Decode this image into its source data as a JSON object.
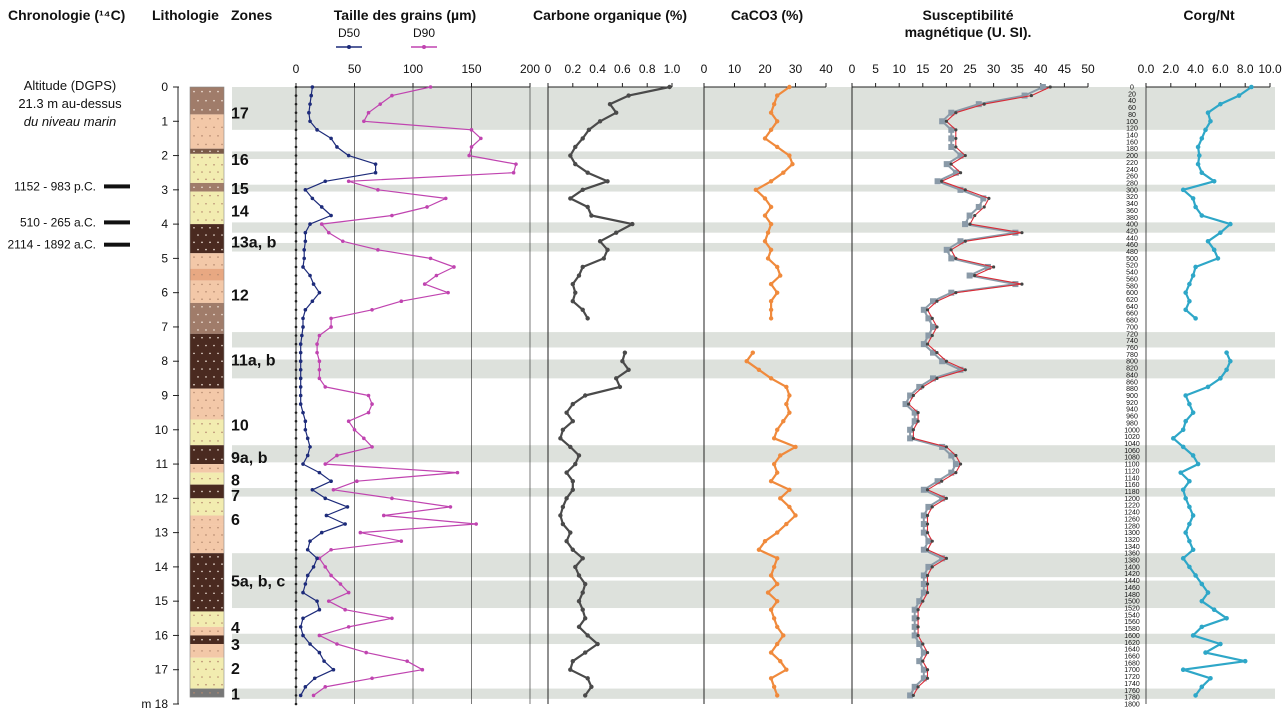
{
  "chart_data": {
    "type": "line",
    "depth_unit_label": "m",
    "depth_range_m": [
      0,
      18
    ],
    "column_titles": {
      "chronology": "Chronologie (¹⁴C)",
      "lithology": "Lithologie",
      "zones": "Zones",
      "grain": "Taille des grains (µm)",
      "corg": "Carbone organique (%)",
      "caco3": "CaCO3 (%)",
      "susc": "Susceptibilité",
      "susc2": "magnétique  (U. SI).",
      "cn": "Corg/Nt"
    },
    "altitude_text": [
      "Altitude (DGPS)",
      "21.3 m au-dessus",
      "du niveau marin"
    ],
    "dates": [
      {
        "label": "1152 - 983 p.C.",
        "depth": 2.9
      },
      {
        "label": "510 - 265 a.C.",
        "depth": 3.95
      },
      {
        "label": "2114 - 1892 a.C.",
        "depth": 4.6
      }
    ],
    "zones": [
      {
        "label": "17",
        "depth": 0.75
      },
      {
        "label": "16",
        "depth": 2.1
      },
      {
        "label": "15",
        "depth": 2.95
      },
      {
        "label": "14",
        "depth": 3.6
      },
      {
        "label": "13a, b",
        "depth": 4.5
      },
      {
        "label": "12",
        "depth": 6.05
      },
      {
        "label": "11a, b",
        "depth": 7.95
      },
      {
        "label": "10",
        "depth": 9.85
      },
      {
        "label": "9a, b",
        "depth": 10.8
      },
      {
        "label": "8",
        "depth": 11.45
      },
      {
        "label": "7",
        "depth": 11.9
      },
      {
        "label": "6",
        "depth": 12.6
      },
      {
        "label": "5a, b, c",
        "depth": 14.4
      },
      {
        "label": "4",
        "depth": 15.75
      },
      {
        "label": "3",
        "depth": 16.25
      },
      {
        "label": "2",
        "depth": 16.95
      },
      {
        "label": "1",
        "depth": 17.7
      }
    ],
    "gray_bands_m": [
      [
        0.0,
        1.25
      ],
      [
        1.88,
        2.1
      ],
      [
        2.85,
        3.05
      ],
      [
        3.95,
        4.25
      ],
      [
        4.55,
        4.8
      ],
      [
        7.15,
        7.6
      ],
      [
        7.95,
        8.5
      ],
      [
        10.45,
        10.95
      ],
      [
        11.7,
        11.95
      ],
      [
        13.6,
        14.3
      ],
      [
        14.4,
        15.2
      ],
      [
        15.95,
        16.25
      ],
      [
        17.55,
        17.85
      ]
    ],
    "lithology_layers": [
      {
        "top": 0.0,
        "bottom": 0.8,
        "color": "#a07c6a"
      },
      {
        "top": 0.8,
        "bottom": 1.8,
        "color": "#f3c8a8"
      },
      {
        "top": 1.8,
        "bottom": 1.95,
        "color": "#7a5a48"
      },
      {
        "top": 1.95,
        "bottom": 2.8,
        "color": "#f2ecb0"
      },
      {
        "top": 2.8,
        "bottom": 3.05,
        "color": "#a07c6a"
      },
      {
        "top": 3.05,
        "bottom": 4.0,
        "color": "#f2ecb0"
      },
      {
        "top": 4.0,
        "bottom": 4.85,
        "color": "#4a2a20"
      },
      {
        "top": 4.85,
        "bottom": 5.3,
        "color": "#f3c8a8"
      },
      {
        "top": 5.3,
        "bottom": 5.65,
        "color": "#e8a882"
      },
      {
        "top": 5.65,
        "bottom": 6.3,
        "color": "#f3c8a8"
      },
      {
        "top": 6.3,
        "bottom": 7.2,
        "color": "#a07c6a"
      },
      {
        "top": 7.2,
        "bottom": 8.8,
        "color": "#4a2a20"
      },
      {
        "top": 8.8,
        "bottom": 9.7,
        "color": "#f3c8a8"
      },
      {
        "top": 9.7,
        "bottom": 10.45,
        "color": "#f2ecb0"
      },
      {
        "top": 10.45,
        "bottom": 11.0,
        "color": "#4a2a20"
      },
      {
        "top": 11.0,
        "bottom": 11.25,
        "color": "#f3c8a8"
      },
      {
        "top": 11.25,
        "bottom": 11.6,
        "color": "#f2ecb0"
      },
      {
        "top": 11.6,
        "bottom": 12.0,
        "color": "#4a2a20"
      },
      {
        "top": 12.0,
        "bottom": 12.5,
        "color": "#f2ecb0"
      },
      {
        "top": 12.5,
        "bottom": 12.75,
        "color": "#f3c8a8"
      },
      {
        "top": 12.75,
        "bottom": 13.6,
        "color": "#f3c8a8"
      },
      {
        "top": 13.6,
        "bottom": 15.3,
        "color": "#4a2a20"
      },
      {
        "top": 15.3,
        "bottom": 15.75,
        "color": "#f2ecb0"
      },
      {
        "top": 15.75,
        "bottom": 16.0,
        "color": "#f3c8a8"
      },
      {
        "top": 16.0,
        "bottom": 16.25,
        "color": "#4a2a20"
      },
      {
        "top": 16.25,
        "bottom": 16.65,
        "color": "#f3c8a8"
      },
      {
        "top": 16.65,
        "bottom": 17.55,
        "color": "#f2ecb0"
      },
      {
        "top": 17.55,
        "bottom": 17.8,
        "color": "#777777"
      }
    ],
    "grain_size": {
      "xlim": [
        0,
        200
      ],
      "x_ticks": [
        "0",
        "50",
        "100",
        "150",
        "200"
      ],
      "legend": [
        "D50",
        "D90"
      ],
      "colors": {
        "D50": "#1d2b7a",
        "D90": "#c044b0"
      },
      "depth": [
        0.0,
        0.25,
        0.5,
        0.75,
        1.0,
        1.25,
        1.5,
        1.75,
        2.0,
        2.25,
        2.5,
        2.75,
        3.0,
        3.25,
        3.5,
        3.75,
        4.0,
        4.25,
        4.5,
        4.75,
        5.0,
        5.25,
        5.5,
        5.75,
        6.0,
        6.25,
        6.5,
        6.75,
        7.0,
        7.25,
        7.5,
        7.75,
        8.0,
        8.25,
        8.5,
        8.75,
        9.0,
        9.25,
        9.5,
        9.75,
        10.0,
        10.25,
        10.5,
        10.75,
        11.0,
        11.25,
        11.5,
        11.75,
        12.0,
        12.25,
        12.5,
        12.75,
        13.0,
        13.25,
        13.5,
        13.75,
        14.0,
        14.25,
        14.5,
        14.75,
        15.0,
        15.25,
        15.5,
        15.75,
        16.0,
        16.25,
        16.5,
        16.75,
        17.0,
        17.25,
        17.5,
        17.75
      ],
      "D50": [
        14,
        13,
        12,
        11,
        12,
        18,
        30,
        35,
        45,
        68,
        68,
        25,
        8,
        14,
        22,
        30,
        12,
        8,
        8,
        7,
        7,
        6,
        12,
        15,
        20,
        14,
        8,
        6,
        6,
        5,
        4,
        4,
        4,
        4,
        4,
        4,
        4,
        4,
        6,
        8,
        8,
        10,
        12,
        10,
        6,
        20,
        30,
        14,
        25,
        44,
        26,
        42,
        22,
        12,
        10,
        18,
        15,
        10,
        8,
        6,
        18,
        20,
        6,
        4,
        6,
        12,
        20,
        24,
        32,
        16,
        8,
        4
      ],
      "D90": [
        115,
        82,
        72,
        62,
        58,
        150,
        158,
        150,
        148,
        188,
        186,
        45,
        70,
        128,
        112,
        82,
        22,
        28,
        40,
        70,
        115,
        135,
        120,
        110,
        130,
        90,
        65,
        30,
        30,
        20,
        18,
        18,
        20,
        20,
        20,
        25,
        62,
        65,
        62,
        45,
        50,
        58,
        65,
        35,
        25,
        138,
        52,
        32,
        82,
        132,
        75,
        154,
        55,
        90,
        30,
        20,
        25,
        30,
        38,
        45,
        28,
        42,
        82,
        45,
        20,
        35,
        60,
        95,
        108,
        65,
        25,
        15
      ]
    },
    "organic_carbon": {
      "xlim": [
        0,
        1.0
      ],
      "x_ticks": [
        "0",
        "0.2",
        "0.4",
        "0.6",
        "0.8",
        "1.0"
      ],
      "color": "#4a4a4a",
      "depth": [
        0.0,
        0.25,
        0.5,
        0.75,
        1.0,
        1.25,
        1.5,
        1.75,
        2.0,
        2.25,
        2.5,
        2.75,
        3.0,
        3.25,
        3.5,
        3.75,
        4.0,
        4.25,
        4.5,
        4.75,
        5.0,
        5.25,
        5.5,
        5.75,
        6.0,
        6.25,
        6.5,
        6.75,
        7.75,
        8.0,
        8.25,
        8.5,
        8.75,
        9.0,
        9.25,
        9.5,
        9.75,
        10.0,
        10.25,
        10.5,
        10.75,
        11.0,
        11.25,
        11.5,
        11.75,
        12.0,
        12.25,
        12.5,
        12.75,
        13.0,
        13.25,
        13.5,
        13.75,
        14.0,
        14.25,
        14.5,
        14.75,
        15.0,
        15.25,
        15.5,
        15.75,
        16.0,
        16.25,
        16.5,
        16.75,
        17.0,
        17.25,
        17.5,
        17.75
      ],
      "values": [
        0.98,
        0.65,
        0.5,
        0.55,
        0.42,
        0.33,
        0.28,
        0.22,
        0.18,
        0.22,
        0.32,
        0.48,
        0.28,
        0.18,
        0.32,
        0.35,
        0.68,
        0.55,
        0.42,
        0.48,
        0.45,
        0.28,
        0.25,
        0.2,
        0.22,
        0.2,
        0.28,
        0.32,
        0.62,
        0.6,
        0.65,
        0.55,
        0.58,
        0.3,
        0.2,
        0.15,
        0.2,
        0.12,
        0.1,
        0.18,
        0.25,
        0.22,
        0.15,
        0.2,
        0.2,
        0.15,
        0.12,
        0.1,
        0.12,
        0.18,
        0.15,
        0.2,
        0.28,
        0.22,
        0.25,
        0.3,
        0.28,
        0.25,
        0.28,
        0.3,
        0.25,
        0.32,
        0.4,
        0.3,
        0.2,
        0.18,
        0.32,
        0.35,
        0.3
      ]
    },
    "caco3": {
      "xlim": [
        0,
        40
      ],
      "x_ticks": [
        "0",
        "10",
        "20",
        "30",
        "40"
      ],
      "color": "#f08a3c",
      "depth": [
        0.0,
        0.25,
        0.5,
        0.75,
        1.0,
        1.25,
        1.5,
        1.75,
        2.0,
        2.25,
        2.5,
        2.75,
        3.0,
        3.25,
        3.5,
        3.75,
        4.0,
        4.25,
        4.5,
        4.75,
        5.0,
        5.25,
        5.5,
        5.75,
        6.0,
        6.25,
        6.5,
        6.75,
        7.75,
        8.0,
        8.25,
        8.5,
        8.75,
        9.0,
        9.25,
        9.5,
        9.75,
        10.0,
        10.25,
        10.5,
        10.75,
        11.0,
        11.25,
        11.5,
        11.75,
        12.0,
        12.25,
        12.5,
        12.75,
        13.0,
        13.25,
        13.5,
        13.75,
        14.0,
        14.25,
        14.5,
        14.75,
        15.0,
        15.25,
        15.5,
        15.75,
        16.0,
        16.25,
        16.5,
        16.75,
        17.0,
        17.25,
        17.5,
        17.75
      ],
      "values": [
        28,
        24,
        23,
        22,
        24,
        22,
        20,
        24,
        28,
        29,
        26,
        22,
        17,
        20,
        22,
        20,
        22,
        21,
        20,
        22,
        21,
        24,
        25,
        22,
        24,
        22,
        22,
        22,
        16,
        14,
        18,
        22,
        27,
        28,
        27,
        28,
        26,
        24,
        23,
        30,
        25,
        23,
        24,
        22,
        28,
        25,
        28,
        30,
        27,
        24,
        20,
        18,
        24,
        23,
        22,
        24,
        21,
        24,
        22,
        23,
        24,
        26,
        24,
        22,
        25,
        27,
        22,
        23,
        24
      ]
    },
    "susceptibility": {
      "xlim": [
        0,
        50
      ],
      "x_ticks": [
        "0",
        "5",
        "10",
        "15",
        "20",
        "25",
        "30",
        "35",
        "40",
        "45",
        "50"
      ],
      "colors": {
        "line": "#d92b36",
        "marker": "#8a9aa8"
      },
      "depth": [
        0.0,
        0.25,
        0.5,
        0.75,
        1.0,
        1.25,
        1.5,
        1.75,
        2.0,
        2.25,
        2.5,
        2.75,
        3.0,
        3.25,
        3.5,
        3.75,
        4.0,
        4.25,
        4.5,
        4.75,
        5.0,
        5.25,
        5.5,
        5.75,
        6.0,
        6.25,
        6.5,
        6.75,
        7.0,
        7.25,
        7.5,
        7.75,
        8.0,
        8.25,
        8.5,
        8.75,
        9.0,
        9.25,
        9.5,
        9.75,
        10.0,
        10.25,
        10.5,
        10.75,
        11.0,
        11.25,
        11.5,
        11.75,
        12.0,
        12.25,
        12.5,
        12.75,
        13.0,
        13.25,
        13.5,
        13.75,
        14.0,
        14.25,
        14.5,
        14.75,
        15.0,
        15.25,
        15.5,
        15.75,
        16.0,
        16.25,
        16.5,
        16.75,
        17.0,
        17.25,
        17.5,
        17.75
      ],
      "values": [
        42,
        38,
        28,
        22,
        20,
        22,
        22,
        22,
        24,
        21,
        23,
        19,
        24,
        29,
        28,
        26,
        25,
        36,
        24,
        21,
        22,
        30,
        26,
        36,
        22,
        18,
        16,
        17,
        18,
        17,
        16,
        18,
        20,
        24,
        18,
        15,
        13,
        12,
        14,
        14,
        13,
        13,
        20,
        22,
        23,
        22,
        19,
        16,
        20,
        17,
        16,
        16,
        16,
        17,
        16,
        20,
        17,
        16,
        16,
        16,
        15,
        14,
        14,
        14,
        14,
        15,
        16,
        15,
        16,
        16,
        14,
        13
      ]
    },
    "corg_nt": {
      "xlim": [
        0,
        10
      ],
      "x_ticks": [
        "0.0",
        "2.0",
        "4.0",
        "6.0",
        "8.0",
        "10.0"
      ],
      "color": "#2ea7c8",
      "depth_scale_labels": [
        "0",
        "20",
        "40",
        "60",
        "80",
        "100",
        "120",
        "140",
        "160",
        "180",
        "200",
        "220",
        "240",
        "260",
        "280",
        "300",
        "320",
        "340",
        "360",
        "380",
        "400",
        "420",
        "440",
        "460",
        "480",
        "500",
        "520",
        "540",
        "560",
        "580",
        "600",
        "620",
        "640",
        "660",
        "680",
        "700",
        "720",
        "740",
        "760",
        "780",
        "800",
        "820",
        "840",
        "860",
        "880",
        "900",
        "920",
        "940",
        "960",
        "980",
        "1000",
        "1020",
        "1040",
        "1060",
        "1080",
        "1100",
        "1120",
        "1140",
        "1160",
        "1180",
        "1200",
        "1220",
        "1240",
        "1260",
        "1280",
        "1300",
        "1320",
        "1340",
        "1360",
        "1380",
        "1400",
        "1420",
        "1440",
        "1460",
        "1480",
        "1500",
        "1520",
        "1540",
        "1560",
        "1580",
        "1600",
        "1620",
        "1640",
        "1660",
        "1680",
        "1700",
        "1720",
        "1740",
        "1760",
        "1780",
        "1800"
      ],
      "depth": [
        0.0,
        0.25,
        0.5,
        0.75,
        1.0,
        1.25,
        1.5,
        1.75,
        2.0,
        2.25,
        2.5,
        2.75,
        3.0,
        3.25,
        3.5,
        3.75,
        4.0,
        4.25,
        4.5,
        4.75,
        5.0,
        5.25,
        5.5,
        5.75,
        6.0,
        6.25,
        6.5,
        6.75,
        7.75,
        8.0,
        8.25,
        8.5,
        8.75,
        9.0,
        9.25,
        9.5,
        9.75,
        10.0,
        10.25,
        10.5,
        10.75,
        11.0,
        11.25,
        11.5,
        11.75,
        12.0,
        12.25,
        12.5,
        12.75,
        13.0,
        13.25,
        13.5,
        13.75,
        14.0,
        14.25,
        14.5,
        14.75,
        15.0,
        15.25,
        15.5,
        15.75,
        16.0,
        16.25,
        16.5,
        16.75,
        17.0,
        17.25,
        17.5,
        17.75
      ],
      "values": [
        8.5,
        7.5,
        6.0,
        5.0,
        5.2,
        4.8,
        4.5,
        4.2,
        4.3,
        4.2,
        4.5,
        5.5,
        3.0,
        3.8,
        4.0,
        4.5,
        6.8,
        6.0,
        5.0,
        5.5,
        5.8,
        4.0,
        3.8,
        3.5,
        3.2,
        3.5,
        3.2,
        4.0,
        6.5,
        6.8,
        6.5,
        6.0,
        5.0,
        3.2,
        3.5,
        3.8,
        3.2,
        3.0,
        2.2,
        3.0,
        3.8,
        4.2,
        2.8,
        3.5,
        3.0,
        3.2,
        3.5,
        3.8,
        3.5,
        3.2,
        3.5,
        3.8,
        3.0,
        3.5,
        4.0,
        4.5,
        5.0,
        4.5,
        5.5,
        6.5,
        4.5,
        3.8,
        6.0,
        4.8,
        8.0,
        3.0,
        5.2,
        4.5,
        4.0
      ]
    }
  }
}
